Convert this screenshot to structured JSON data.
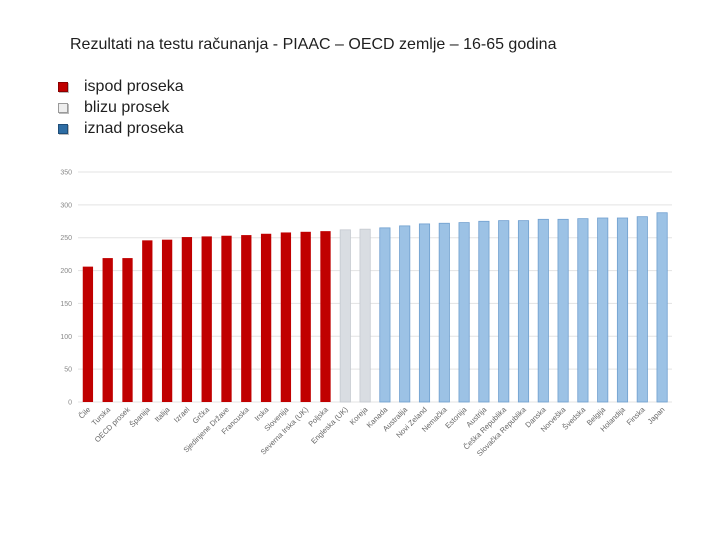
{
  "title": "Rezultati na testu računanja - PIAAC – OECD zemlje – 16-65 godina",
  "legend": [
    {
      "label": "ispod proseka",
      "color": "#c00000"
    },
    {
      "label": "blizu prosek",
      "color": "#e0e0e0"
    },
    {
      "label": "iznad proseka",
      "color": "#2e6da4"
    }
  ],
  "colors": {
    "below": "#c00000",
    "near": "#d9dde2",
    "above": "#9cc2e5",
    "above_edge": "#6f9fcf"
  },
  "chart_data": {
    "type": "bar",
    "categories": [
      "Čile",
      "Turska",
      "OECD prosek",
      "Španija",
      "Italija",
      "Izrael",
      "Grčka",
      "Sjedinjene Države",
      "Francuska",
      "Irska",
      "Slovenija",
      "Severna Irska (UK)",
      "Poljska",
      "Engleska (UK)",
      "Koreja",
      "Kanada",
      "Australija",
      "Novi Zeland",
      "Nemačka",
      "Estonija",
      "Austrija",
      "Češka Republika",
      "Slovačka Republika",
      "Danska",
      "Norveška",
      "Švedska",
      "Belgija",
      "Holandija",
      "Finska",
      "Japan"
    ],
    "values": [
      206,
      219,
      219,
      246,
      247,
      251,
      252,
      253,
      254,
      256,
      258,
      259,
      260,
      262,
      263,
      265,
      268,
      271,
      272,
      273,
      275,
      276,
      276,
      278,
      278,
      279,
      280,
      280,
      282,
      288
    ],
    "groups": [
      "below",
      "below",
      "below",
      "below",
      "below",
      "below",
      "below",
      "below",
      "below",
      "below",
      "below",
      "below",
      "below",
      "near",
      "near",
      "above",
      "above",
      "above",
      "above",
      "above",
      "above",
      "above",
      "above",
      "above",
      "above",
      "above",
      "above",
      "above",
      "above",
      "above"
    ],
    "yticks": [
      0,
      50,
      100,
      150,
      200,
      250,
      300,
      350
    ],
    "ylim": [
      0,
      350
    ],
    "grid": true,
    "legend_position": "top-left",
    "title": "",
    "xlabel": "",
    "ylabel": ""
  }
}
